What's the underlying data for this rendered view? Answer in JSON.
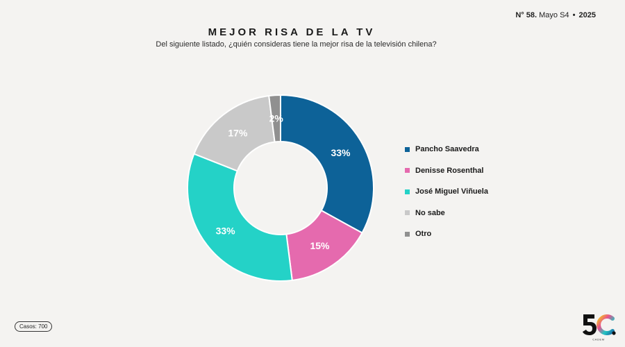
{
  "header": {
    "issue_prefix": "N°",
    "issue_number": "58.",
    "period": "Mayo S4",
    "separator": "•",
    "year": "2025"
  },
  "footer": {
    "cases_label": "Casos: 700",
    "logo_mark": "5C",
    "logo_subtext": "CADEM"
  },
  "colors": {
    "pancho": "#0d6298",
    "denisse": "#e56aae",
    "jose": "#24d2c7",
    "no_sabe": "#c9c9c9",
    "otro": "#909090"
  },
  "chart_data": {
    "type": "pie",
    "title": "MEJOR RISA DE LA TV",
    "subtitle": "Del siguiente listado, ¿quién consideras tiene la mejor risa de la televisión chilena?",
    "donut": true,
    "legend_position": "right",
    "categories": [
      "Pancho Saavedra",
      "Denisse Rosenthal",
      "José Miguel Viñuela",
      "No sabe",
      "Otro"
    ],
    "values": [
      33,
      15,
      33,
      17,
      2
    ],
    "labels": [
      "33%",
      "15%",
      "33%",
      "17%",
      "2%"
    ],
    "colors": [
      "#0d6298",
      "#e56aae",
      "#24d2c7",
      "#c9c9c9",
      "#909090"
    ]
  }
}
